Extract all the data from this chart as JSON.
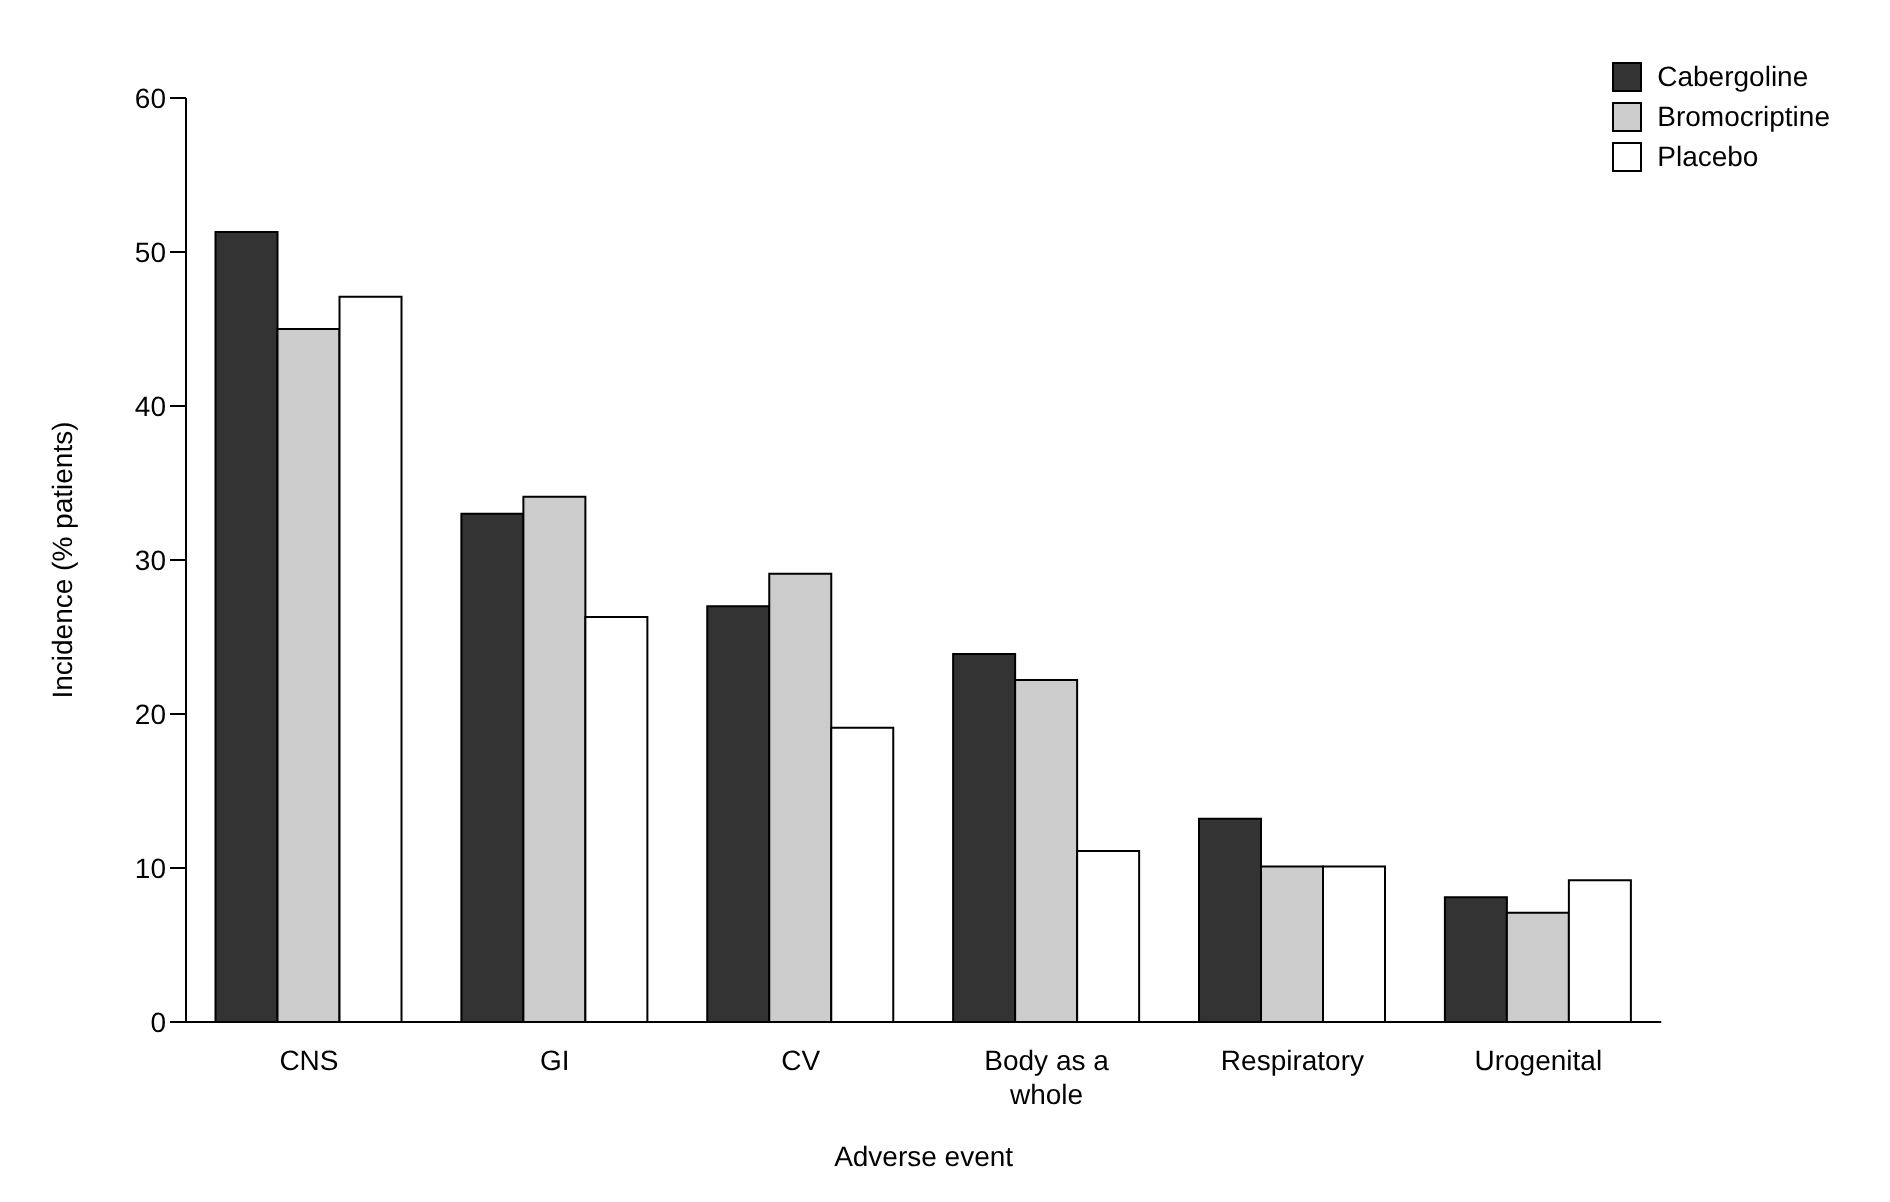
{
  "chart_data": {
    "type": "bar",
    "xlabel": "Adverse event",
    "ylabel": "Incidence (% patients)",
    "categories": [
      "CNS",
      "GI",
      "CV",
      "Body as a whole",
      "Respiratory",
      "Urogenital"
    ],
    "series": [
      {
        "name": "Cabergoline",
        "color": "#333333",
        "values": [
          51.3,
          33,
          27,
          23.9,
          13.2,
          8.1
        ]
      },
      {
        "name": "Bromocriptine",
        "color": "#cccccc",
        "values": [
          45,
          34.1,
          29.1,
          22.2,
          10.1,
          7.1
        ]
      },
      {
        "name": "Placebo",
        "color": "#ffffff",
        "values": [
          47.1,
          26.3,
          19.1,
          11.1,
          10.1,
          9.2
        ]
      }
    ],
    "ylim": [
      0,
      60
    ],
    "yticks": [
      0,
      10,
      20,
      30,
      40,
      50,
      60
    ],
    "grid": false,
    "legend": "top right"
  }
}
